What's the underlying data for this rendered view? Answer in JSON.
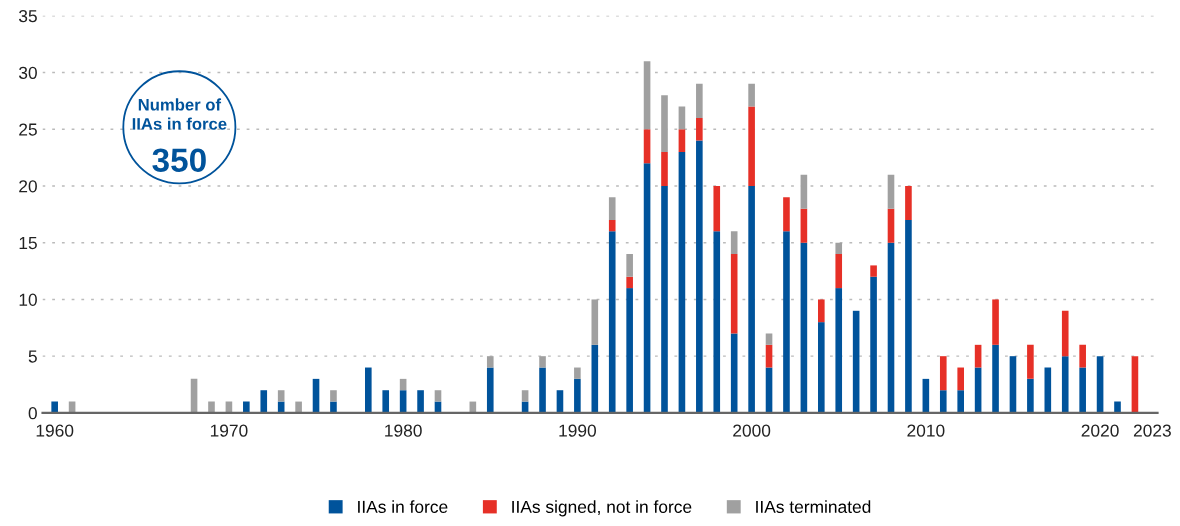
{
  "chart_data": {
    "type": "bar",
    "stacked": true,
    "x": [
      1960,
      1961,
      1962,
      1963,
      1964,
      1965,
      1966,
      1967,
      1968,
      1969,
      1970,
      1971,
      1972,
      1973,
      1974,
      1975,
      1976,
      1977,
      1978,
      1979,
      1980,
      1981,
      1982,
      1983,
      1984,
      1985,
      1986,
      1987,
      1988,
      1989,
      1990,
      1991,
      1992,
      1993,
      1994,
      1995,
      1996,
      1997,
      1998,
      1999,
      2000,
      2001,
      2002,
      2003,
      2004,
      2005,
      2006,
      2007,
      2008,
      2009,
      2010,
      2011,
      2012,
      2013,
      2014,
      2015,
      2016,
      2017,
      2018,
      2019,
      2020,
      2021,
      2022
    ],
    "series": [
      {
        "name": "IIAs in force",
        "color": "#00539b",
        "values": [
          1,
          0,
          0,
          0,
          0,
          0,
          0,
          0,
          0,
          0,
          0,
          1,
          2,
          1,
          0,
          3,
          1,
          0,
          4,
          2,
          2,
          2,
          1,
          0,
          0,
          4,
          0,
          1,
          4,
          2,
          3,
          6,
          16,
          11,
          22,
          20,
          23,
          24,
          16,
          7,
          20,
          4,
          16,
          15,
          8,
          11,
          9,
          12,
          15,
          17,
          3,
          2,
          2,
          4,
          6,
          5,
          3,
          4,
          5,
          4,
          5,
          1,
          0
        ]
      },
      {
        "name": "IIAs signed, not in force",
        "color": "#e63027",
        "values": [
          0,
          0,
          0,
          0,
          0,
          0,
          0,
          0,
          0,
          0,
          0,
          0,
          0,
          0,
          0,
          0,
          0,
          0,
          0,
          0,
          0,
          0,
          0,
          0,
          0,
          0,
          0,
          0,
          0,
          0,
          0,
          0,
          1,
          1,
          3,
          3,
          2,
          2,
          4,
          7,
          7,
          2,
          3,
          3,
          2,
          3,
          0,
          1,
          3,
          3,
          0,
          3,
          2,
          2,
          4,
          0,
          3,
          0,
          4,
          2,
          0,
          0,
          5
        ]
      },
      {
        "name": "IIAs terminated",
        "color": "#a0a0a0",
        "values": [
          0,
          1,
          0,
          0,
          0,
          0,
          0,
          0,
          3,
          1,
          1,
          0,
          0,
          1,
          1,
          0,
          1,
          0,
          0,
          0,
          1,
          0,
          1,
          0,
          1,
          1,
          0,
          1,
          1,
          0,
          1,
          4,
          2,
          2,
          6,
          5,
          2,
          3,
          0,
          2,
          2,
          1,
          0,
          3,
          0,
          1,
          0,
          0,
          3,
          0,
          0,
          0,
          0,
          0,
          0,
          0,
          0,
          0,
          0,
          0,
          0,
          0,
          0
        ]
      }
    ],
    "xlim": [
      1959.3,
      2023.3
    ],
    "xticks": [
      1960,
      1970,
      1980,
      1990,
      2000,
      2010,
      2020,
      2023
    ],
    "ylim": [
      0,
      35
    ],
    "yticks": [
      0,
      5,
      10,
      15,
      20,
      25,
      30,
      35
    ],
    "grid": "y",
    "legend": "bottom",
    "annotations": [
      "Number of\nIIAs in force",
      "350"
    ]
  }
}
